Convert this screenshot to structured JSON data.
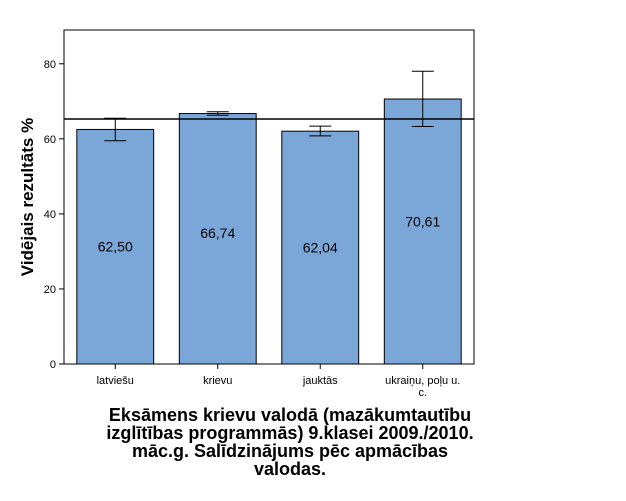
{
  "chart_data": {
    "type": "bar",
    "categories": [
      "latviešu",
      "krievu",
      "jauktās",
      "ukraiņu, poļu u. c."
    ],
    "category_label_lines": [
      [
        "latviešu"
      ],
      [
        "krievu"
      ],
      [
        "jauktās"
      ],
      [
        "ukraiņu, poļu u.",
        "c."
      ]
    ],
    "values": [
      62.5,
      66.74,
      62.04,
      70.61
    ],
    "value_labels": [
      "62,50",
      "66,74",
      "62,04",
      "70,61"
    ],
    "error_bars": [
      {
        "low": 59.5,
        "high": 65.5
      },
      {
        "low": 66.3,
        "high": 67.2
      },
      {
        "low": 60.8,
        "high": 63.4
      },
      {
        "low": 63.3,
        "high": 78.0
      }
    ],
    "reference_line": 65.3,
    "ylabel": "Vidējais rezultāts %",
    "xlabel": "",
    "ylim": [
      0,
      89
    ],
    "yticks": [
      0,
      20,
      40,
      60,
      80
    ],
    "bar_color": "#7ba7d8",
    "grid": false,
    "title_lines": [
      "Eksāmens krievu valodā (mazākumtautību",
      "izglītības programmās) 9.klasei 2009./2010.",
      "māc.g. Salīdzinājums pēc apmācības",
      "valodas."
    ]
  }
}
